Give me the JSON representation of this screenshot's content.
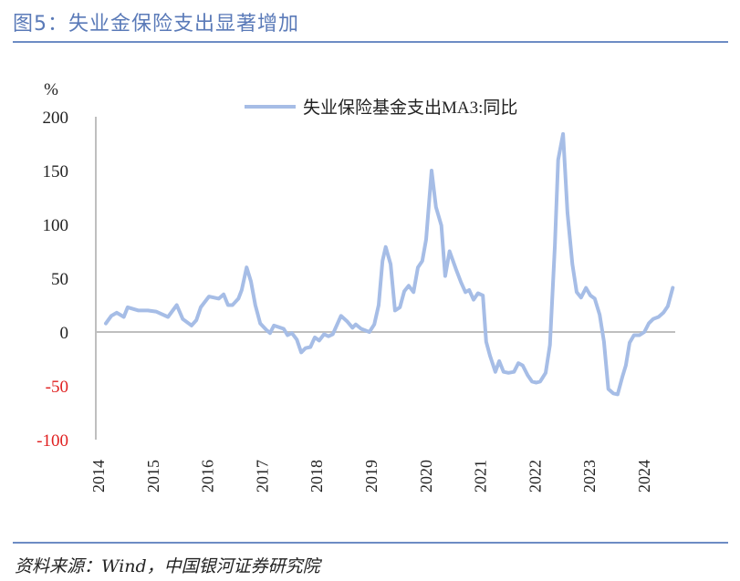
{
  "title": "图5：失业金保险支出显著增加",
  "source": "资料来源：Wind，中国银河证券研究院",
  "chart_data": {
    "type": "line",
    "title": "",
    "xlabel": "",
    "ylabel": "%",
    "ylim": [
      -100,
      200
    ],
    "yticks": [
      200,
      150,
      100,
      50,
      0,
      -50,
      -100
    ],
    "negative_tick_color": "#e02020",
    "xlim": [
      2014,
      2024.8
    ],
    "xticks": [
      "2014",
      "2015",
      "2016",
      "2017",
      "2018",
      "2019",
      "2020",
      "2021",
      "2022",
      "2023",
      "2024"
    ],
    "grid": false,
    "legend": "top-center",
    "series": [
      {
        "name": "失业保险基金支出MA3:同比",
        "color": "#a6bde6",
        "points": [
          [
            2014.15,
            8
          ],
          [
            2014.25,
            15
          ],
          [
            2014.35,
            18
          ],
          [
            2014.48,
            14
          ],
          [
            2014.55,
            23
          ],
          [
            2014.75,
            20
          ],
          [
            2014.92,
            20
          ],
          [
            2015.07,
            19
          ],
          [
            2015.29,
            14
          ],
          [
            2015.45,
            25
          ],
          [
            2015.56,
            12
          ],
          [
            2015.72,
            6
          ],
          [
            2015.81,
            11
          ],
          [
            2015.89,
            23
          ],
          [
            2016.04,
            33
          ],
          [
            2016.22,
            31
          ],
          [
            2016.31,
            35
          ],
          [
            2016.39,
            25
          ],
          [
            2016.47,
            25
          ],
          [
            2016.58,
            31
          ],
          [
            2016.64,
            39
          ],
          [
            2016.73,
            60
          ],
          [
            2016.81,
            47
          ],
          [
            2016.89,
            25
          ],
          [
            2016.98,
            8
          ],
          [
            2017.09,
            2
          ],
          [
            2017.16,
            -1
          ],
          [
            2017.23,
            6
          ],
          [
            2017.41,
            3
          ],
          [
            2017.48,
            -3
          ],
          [
            2017.56,
            -1
          ],
          [
            2017.65,
            -7
          ],
          [
            2017.73,
            -19
          ],
          [
            2017.81,
            -15
          ],
          [
            2017.9,
            -14
          ],
          [
            2017.98,
            -5
          ],
          [
            2018.06,
            -8
          ],
          [
            2018.15,
            -2
          ],
          [
            2018.23,
            -4
          ],
          [
            2018.31,
            -2
          ],
          [
            2018.46,
            15
          ],
          [
            2018.57,
            10
          ],
          [
            2018.67,
            4
          ],
          [
            2018.73,
            7
          ],
          [
            2018.83,
            3
          ],
          [
            2018.98,
            0
          ],
          [
            2019.07,
            7
          ],
          [
            2019.15,
            25
          ],
          [
            2019.22,
            66
          ],
          [
            2019.28,
            79
          ],
          [
            2019.37,
            63
          ],
          [
            2019.45,
            20
          ],
          [
            2019.54,
            23
          ],
          [
            2019.62,
            38
          ],
          [
            2019.7,
            43
          ],
          [
            2019.79,
            37
          ],
          [
            2019.87,
            60
          ],
          [
            2019.95,
            66
          ],
          [
            2020.02,
            86
          ],
          [
            2020.12,
            150
          ],
          [
            2020.2,
            116
          ],
          [
            2020.3,
            99
          ],
          [
            2020.37,
            52
          ],
          [
            2020.45,
            75
          ],
          [
            2020.57,
            58
          ],
          [
            2020.66,
            46
          ],
          [
            2020.74,
            37
          ],
          [
            2020.81,
            39
          ],
          [
            2020.89,
            30
          ],
          [
            2020.97,
            36
          ],
          [
            2021.06,
            34
          ],
          [
            2021.12,
            -9
          ],
          [
            2021.19,
            -22
          ],
          [
            2021.29,
            -37
          ],
          [
            2021.36,
            -27
          ],
          [
            2021.44,
            -37
          ],
          [
            2021.53,
            -38
          ],
          [
            2021.63,
            -37
          ],
          [
            2021.71,
            -29
          ],
          [
            2021.79,
            -31
          ],
          [
            2021.88,
            -40
          ],
          [
            2021.96,
            -46
          ],
          [
            2022.04,
            -47
          ],
          [
            2022.11,
            -46
          ],
          [
            2022.21,
            -38
          ],
          [
            2022.29,
            -12
          ],
          [
            2022.38,
            80
          ],
          [
            2022.44,
            160
          ],
          [
            2022.53,
            184
          ],
          [
            2022.61,
            111
          ],
          [
            2022.7,
            63
          ],
          [
            2022.78,
            37
          ],
          [
            2022.86,
            32
          ],
          [
            2022.95,
            41
          ],
          [
            2023.03,
            34
          ],
          [
            2023.11,
            31
          ],
          [
            2023.2,
            16
          ],
          [
            2023.28,
            -9
          ],
          [
            2023.36,
            -53
          ],
          [
            2023.45,
            -57
          ],
          [
            2023.53,
            -58
          ],
          [
            2023.62,
            -41
          ],
          [
            2023.68,
            -31
          ],
          [
            2023.75,
            -10
          ],
          [
            2023.83,
            -3
          ],
          [
            2023.93,
            -3
          ],
          [
            2024.02,
            0
          ],
          [
            2024.1,
            8
          ],
          [
            2024.18,
            12
          ],
          [
            2024.28,
            14
          ],
          [
            2024.37,
            18
          ],
          [
            2024.45,
            24
          ],
          [
            2024.54,
            41
          ]
        ]
      }
    ]
  }
}
